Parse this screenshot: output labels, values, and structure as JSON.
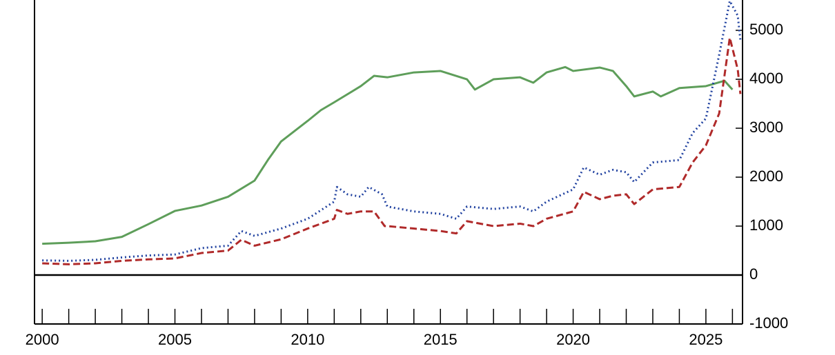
{
  "chart_data": {
    "type": "line",
    "x_step": 1,
    "xlim": [
      1999.71,
      2026.38
    ],
    "xticks": [
      2000,
      2005,
      2010,
      2015,
      2020,
      2025
    ],
    "xminorticks": [
      2000,
      2001,
      2002,
      2003,
      2004,
      2005,
      2006,
      2007,
      2008,
      2009,
      2010,
      2011,
      2012,
      2013,
      2014,
      2015,
      2016,
      2017,
      2018,
      2019,
      2020,
      2021,
      2022,
      2023,
      2024,
      2025,
      2026
    ],
    "ylim": [
      -1000,
      5620
    ],
    "yticks": [
      -1000,
      0,
      1000,
      2000,
      3000,
      4000,
      5000
    ],
    "hline": 0,
    "series": [
      {
        "color": "#5e9e5a",
        "style": "solid",
        "x": [
          2000,
          2001,
          2002,
          2003,
          2004,
          2005,
          2006,
          2007,
          2008,
          2008.5,
          2009,
          2010,
          2010.5,
          2011,
          2012,
          2012.5,
          2013,
          2014,
          2015,
          2016,
          2016.3,
          2017,
          2018,
          2018.5,
          2019,
          2019.7,
          2020,
          2021,
          2021.5,
          2022,
          2022.3,
          2023,
          2023.3,
          2024,
          2025,
          2025.7,
          2026
        ],
        "values": [
          640,
          660,
          690,
          780,
          1040,
          1310,
          1420,
          1600,
          1930,
          2350,
          2730,
          3150,
          3370,
          3530,
          3860,
          4070,
          4040,
          4140,
          4170,
          4000,
          3790,
          4000,
          4040,
          3930,
          4140,
          4250,
          4170,
          4240,
          4170,
          3860,
          3650,
          3750,
          3650,
          3820,
          3860,
          3970,
          3790
        ]
      },
      {
        "color": "#2142a0",
        "style": "dotted",
        "x": [
          2000,
          2001,
          2002,
          2003,
          2004,
          2005,
          2006,
          2007,
          2007.5,
          2008,
          2009,
          2010,
          2011,
          2011.1,
          2011.5,
          2012,
          2012.3,
          2012.8,
          2013,
          2014,
          2015,
          2015.6,
          2016,
          2017,
          2018,
          2018.5,
          2019,
          2020,
          2020.4,
          2021,
          2021.5,
          2022,
          2022.3,
          2023,
          2024,
          2024.5,
          2025,
          2025.5,
          2025.9,
          2026.2,
          2026.3
        ],
        "values": [
          300,
          290,
          310,
          360,
          400,
          420,
          550,
          600,
          900,
          800,
          950,
          1150,
          1500,
          1800,
          1650,
          1600,
          1800,
          1650,
          1400,
          1300,
          1250,
          1150,
          1400,
          1350,
          1400,
          1300,
          1500,
          1750,
          2200,
          2050,
          2150,
          2100,
          1900,
          2300,
          2350,
          2900,
          3200,
          4500,
          5600,
          5300,
          4800
        ]
      },
      {
        "color": "#b02a2a",
        "style": "dashed",
        "x": [
          2000,
          2001,
          2002,
          2003,
          2004,
          2005,
          2006,
          2007,
          2007.5,
          2008,
          2009,
          2010,
          2011,
          2011.1,
          2011.5,
          2012,
          2012.5,
          2012.9,
          2013,
          2014,
          2015,
          2015.6,
          2016,
          2017,
          2018,
          2018.5,
          2019,
          2020,
          2020.4,
          2021,
          2021.5,
          2022,
          2022.3,
          2023,
          2024,
          2024.5,
          2025,
          2025.5,
          2025.9,
          2026.2,
          2026.3
        ],
        "values": [
          240,
          220,
          240,
          290,
          320,
          340,
          450,
          500,
          720,
          600,
          730,
          950,
          1150,
          1330,
          1250,
          1300,
          1300,
          1000,
          1000,
          950,
          900,
          850,
          1100,
          1000,
          1050,
          1000,
          1150,
          1300,
          1700,
          1550,
          1620,
          1650,
          1450,
          1750,
          1800,
          2300,
          2650,
          3300,
          4850,
          4200,
          3700
        ]
      }
    ]
  }
}
